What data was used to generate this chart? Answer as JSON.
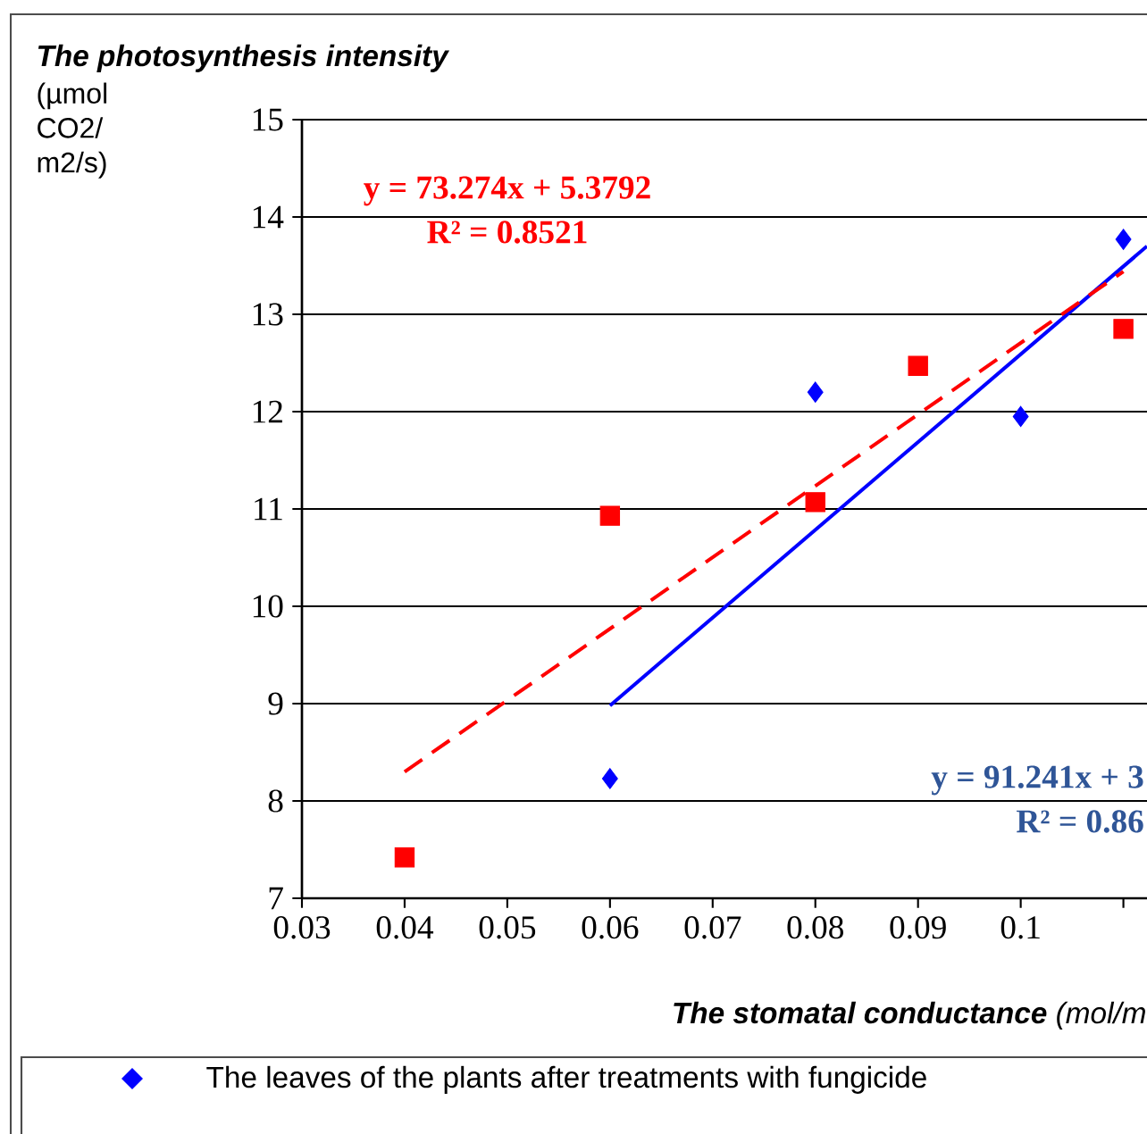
{
  "chart_data": {
    "type": "scatter",
    "title": "The photosynthesis intensity",
    "xlabel": "**The stomatal conductance** (mol/m",
    "series": [
      {
        "name": "The leaves of the plants after treatments with fungicide",
        "color": "#0000ff",
        "marker": "diamond",
        "x": [
          0.06,
          0.08,
          0.1,
          0.11
        ],
        "values": [
          8.23,
          12.2,
          11.95,
          13.77
        ]
      },
      {
        "color": "#ff0000",
        "marker": "square",
        "x": [
          0.04,
          0.06,
          0.08,
          0.09,
          0.11
        ],
        "values": [
          7.42,
          10.93,
          11.07,
          12.47,
          12.85
        ]
      },
      {
        "type": "line",
        "color": "#0000ff",
        "line_style": "solid",
        "marker": "none",
        "x": [
          0.06,
          0.1123
        ],
        "values": [
          8.98,
          13.7
        ]
      },
      {
        "type": "line",
        "color": "#ff0000",
        "line_style": "dashed",
        "marker": "none",
        "x": [
          0.04,
          0.11
        ],
        "values": [
          8.3,
          13.44
        ]
      }
    ],
    "annotations": [
      "y = 73.274x + 5.3792",
      "R² = 0.8521",
      "y = 91.241x + 3",
      "R² = 0.86",
      "(µmol CO2/ m2/s)"
    ],
    "xlim": [
      0.03,
      0.1123
    ],
    "xticks": [
      0.03,
      0.04,
      0.05,
      0.06,
      0.07,
      0.08,
      0.09,
      0.1,
      {
        "value": 0.11,
        "label": null
      }
    ],
    "ylim": [
      7,
      15
    ],
    "yticks": [
      7,
      8,
      9,
      10,
      11,
      12,
      13,
      14,
      15
    ],
    "grid": "y",
    "legend": "bottom"
  }
}
